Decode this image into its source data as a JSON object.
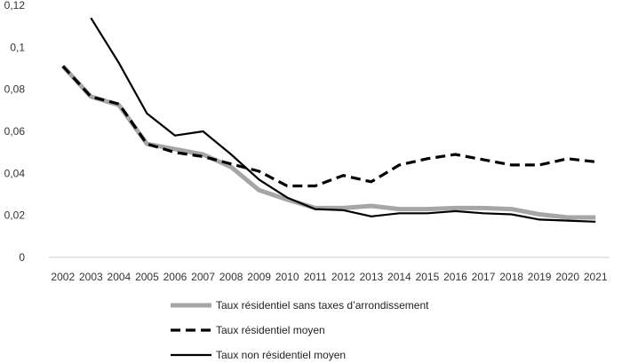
{
  "chart_data": {
    "type": "line",
    "title": "",
    "xlabel": "",
    "ylabel": "",
    "x": [
      "2002",
      "2003",
      "2004",
      "2005",
      "2006",
      "2007",
      "2008",
      "2009",
      "2010",
      "2011",
      "2012",
      "2013",
      "2014",
      "2015",
      "2016",
      "2017",
      "2018",
      "2019",
      "2020",
      "2021"
    ],
    "ylim": [
      0,
      0.12
    ],
    "yticks": [
      0,
      0.02,
      0.04,
      0.06,
      0.08,
      0.1,
      0.12
    ],
    "ytick_labels": [
      "0",
      "0,02",
      "0,04",
      "0,06",
      "0,08",
      "0,1",
      "0,12"
    ],
    "grid": false,
    "legend_position": "bottom",
    "series": [
      {
        "name": "Taux résidentiel sans taxes d’arrondissement",
        "style": "solid-thick",
        "color": "#a6a6a6",
        "values": [
          0.091,
          0.0765,
          0.0725,
          0.054,
          0.0515,
          0.049,
          0.043,
          0.032,
          0.0275,
          0.0235,
          0.0235,
          0.0245,
          0.023,
          0.023,
          0.0235,
          0.0235,
          0.023,
          0.0205,
          0.019,
          0.019
        ]
      },
      {
        "name": "Taux résidentiel moyen",
        "style": "dashed",
        "color": "#000000",
        "values": [
          0.091,
          0.0765,
          0.073,
          0.054,
          0.05,
          0.048,
          0.0445,
          0.041,
          0.034,
          0.034,
          0.039,
          0.036,
          0.044,
          0.047,
          0.049,
          0.0465,
          0.044,
          0.044,
          0.047,
          0.0455
        ]
      },
      {
        "name": "Taux non résidentiel moyen",
        "style": "solid",
        "color": "#000000",
        "values": [
          null,
          0.114,
          0.0925,
          0.0685,
          0.058,
          0.06,
          0.049,
          0.037,
          0.0285,
          0.023,
          0.0225,
          0.0195,
          0.021,
          0.021,
          0.022,
          0.021,
          0.0205,
          0.018,
          0.0175,
          0.017
        ]
      }
    ]
  }
}
